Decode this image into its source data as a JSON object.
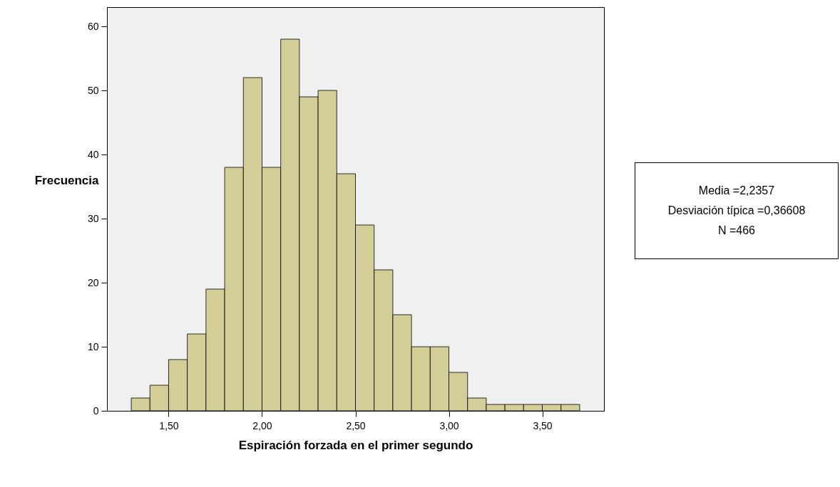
{
  "chart_data": {
    "type": "histogram",
    "xlabel": "Espiración forzada en el primer segundo",
    "ylabel": "Frecuencia",
    "bins": [
      1.3,
      1.4,
      1.5,
      1.6,
      1.7,
      1.8,
      1.9,
      2.0,
      2.1,
      2.2,
      2.3,
      2.4,
      2.5,
      2.6,
      2.7,
      2.8,
      2.9,
      3.0,
      3.1,
      3.2,
      3.3,
      3.4,
      3.5,
      3.6,
      3.7
    ],
    "values": [
      2,
      4,
      8,
      12,
      19,
      38,
      52,
      38,
      58,
      49,
      50,
      37,
      29,
      22,
      15,
      10,
      10,
      6,
      2,
      1,
      1,
      1,
      1,
      1
    ],
    "color": "#d3ce97",
    "xlim": [
      1.17,
      3.83
    ],
    "xticks": [
      {
        "value": 1.5,
        "label": "1,50"
      },
      {
        "value": 2.0,
        "label": "2,00"
      },
      {
        "value": 2.5,
        "label": "2,50"
      },
      {
        "value": 3.0,
        "label": "3,00"
      },
      {
        "value": 3.5,
        "label": "3,50"
      }
    ],
    "ylim": [
      0,
      63
    ],
    "yticks": [
      0,
      10,
      20,
      30,
      40,
      50,
      60
    ],
    "grid": false,
    "annotations": [
      "Media =2,2357",
      "Desviación típica =0,36608",
      "N =466"
    ]
  }
}
